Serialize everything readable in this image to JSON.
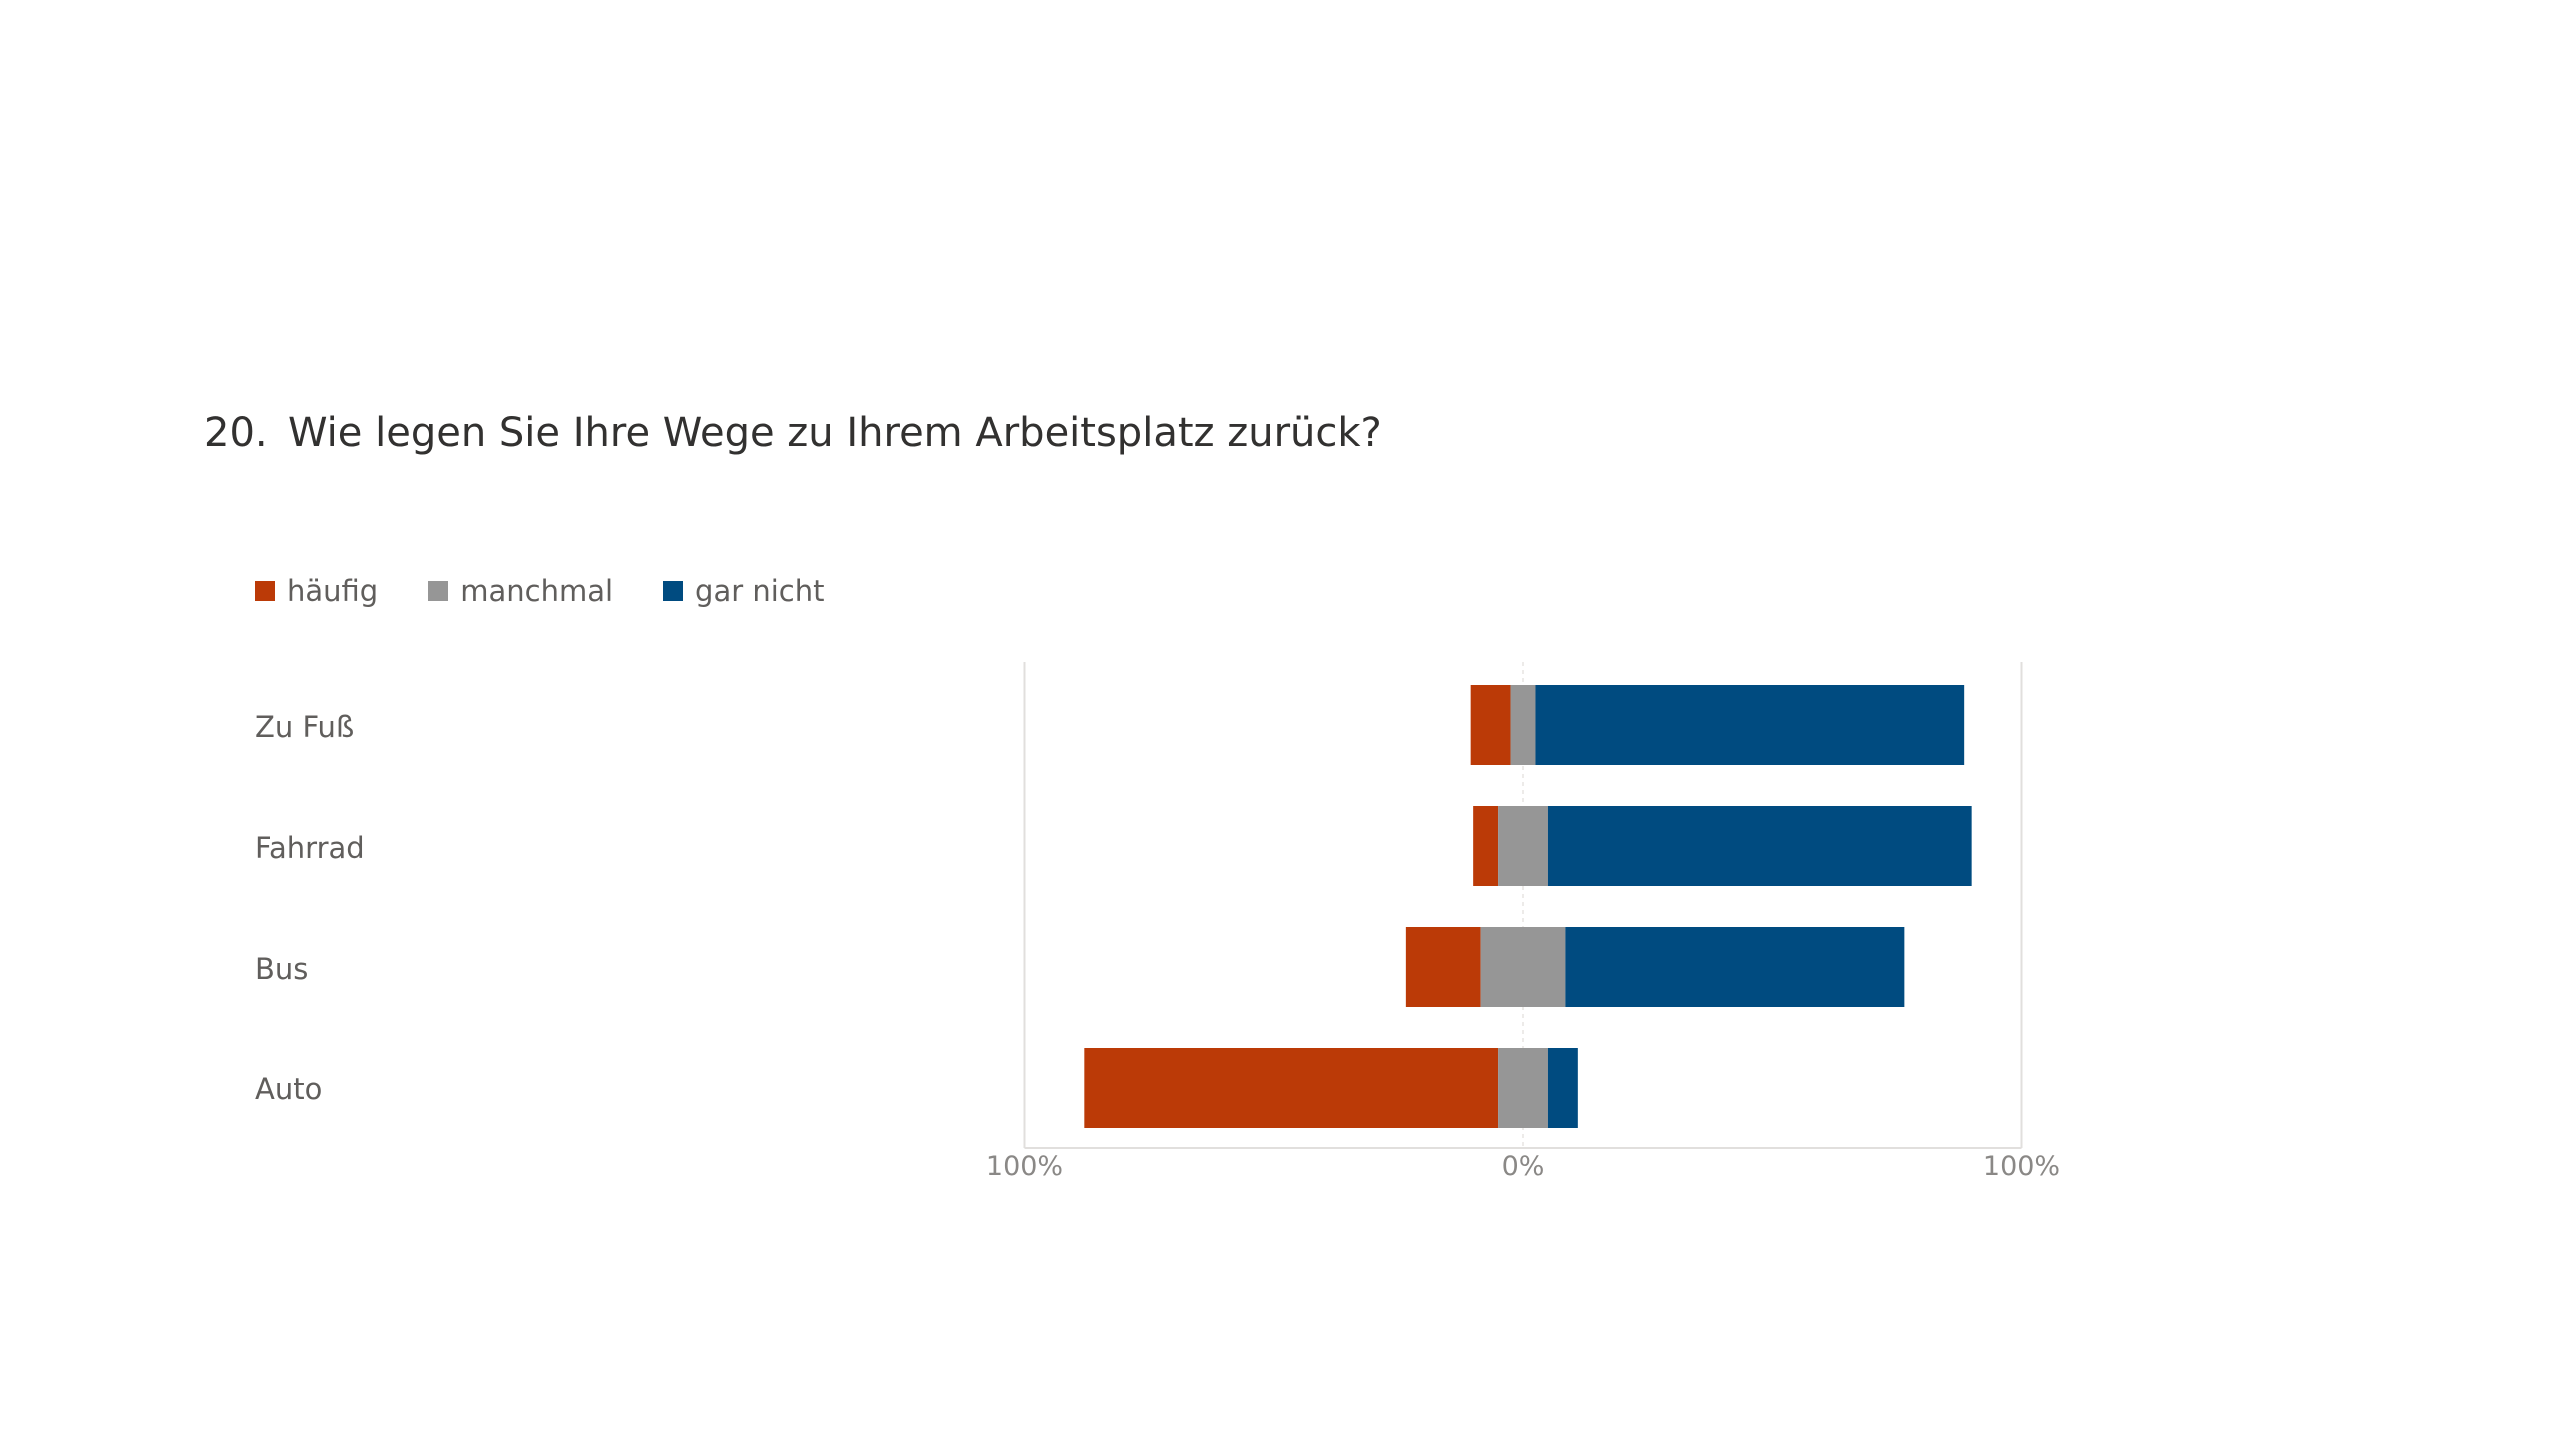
{
  "question": {
    "number": "20.",
    "text": "Wie legen Sie Ihre Wege zu Ihrem Arbeitsplatz zurück?"
  },
  "colors": {
    "haeufig": "#bb3a07",
    "manchmal": "#969696",
    "gar_nicht": "#004b80",
    "gridline": "#e1dfdd",
    "zero_line": "#edebe9"
  },
  "chart_data": {
    "type": "bar",
    "orientation": "horizontal",
    "stacking": "diverging",
    "categories": [
      "Zu Fuß",
      "Fahrrad",
      "Bus",
      "Auto"
    ],
    "series": [
      {
        "name": "häufig",
        "values": [
          8,
          5,
          15,
          83
        ]
      },
      {
        "name": "manchmal",
        "values": [
          5,
          10,
          17,
          10
        ]
      },
      {
        "name": "gar nicht",
        "values": [
          86,
          85,
          68,
          6
        ]
      }
    ],
    "neutral_series": "manchmal",
    "legend_position": "top-left",
    "x_ticks": [
      "100%",
      "0%",
      "100%"
    ],
    "xlim": [
      -100,
      100
    ]
  }
}
